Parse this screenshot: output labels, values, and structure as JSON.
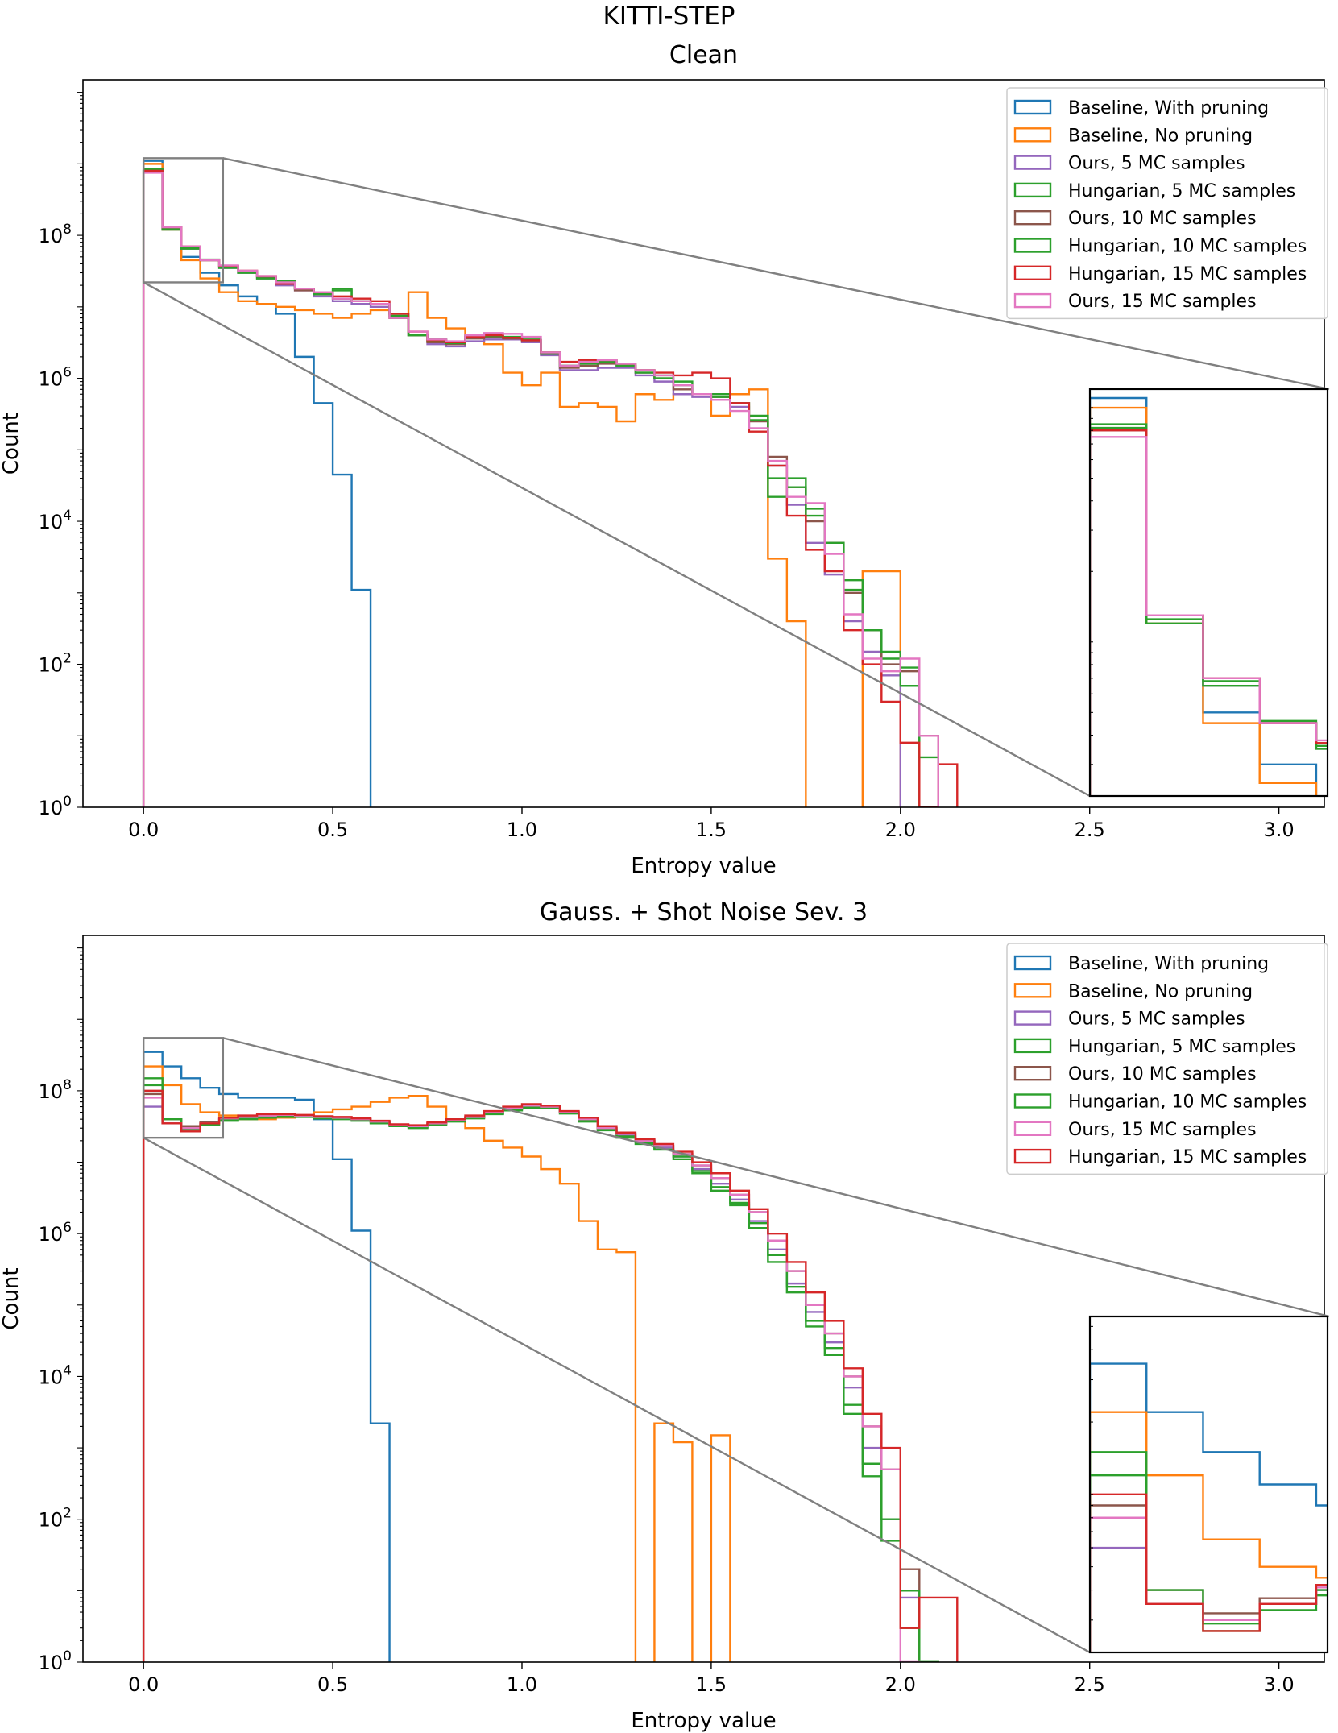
{
  "figure": {
    "title": "KITTI-STEP",
    "colors": {
      "blue": "#1f77b4",
      "orange": "#ff7f0e",
      "purple": "#9467bd",
      "green": "#2ca02c",
      "brown": "#8c564b",
      "red": "#d62728",
      "pink": "#e377c2",
      "gray": "#808080"
    }
  },
  "chart_data": [
    {
      "type": "histogram-step",
      "title": "Clean",
      "xlabel": "Entropy value",
      "ylabel": "Count",
      "yscale": "log",
      "xlim": [
        -0.16,
        3.12
      ],
      "ylim": [
        1,
        15000000000
      ],
      "xticks": [
        "0.0",
        "0.5",
        "1.0",
        "1.5",
        "2.0",
        "2.5",
        "3.0"
      ],
      "xtick_values": [
        0,
        0.5,
        1,
        1.5,
        2,
        2.5,
        3
      ],
      "yticks": [
        {
          "value": 1,
          "base": "10",
          "exp": "0"
        },
        {
          "value": 100,
          "base": "10",
          "exp": "2"
        },
        {
          "value": 10000,
          "base": "10",
          "exp": "4"
        },
        {
          "value": 1000000,
          "base": "10",
          "exp": "6"
        },
        {
          "value": 100000000,
          "base": "10",
          "exp": "8"
        }
      ],
      "legend_position": "upper right",
      "bin_width": 0.05,
      "series": [
        {
          "name": "Baseline, With pruning",
          "color": "blue",
          "values": [
            1100000000.0,
            120000000.0,
            50000000.0,
            30000000.0,
            20000000.0,
            14000000.0,
            11000000.0,
            8000000.0,
            2000000.0,
            450000.0,
            45000.0,
            1100.0
          ]
        },
        {
          "name": "Baseline, No pruning",
          "color": "orange",
          "values": [
            1000000000.0,
            120000000.0,
            45000000.0,
            25000000.0,
            16000000.0,
            12000000.0,
            11000000.0,
            10000000.0,
            9000000.0,
            8000000.0,
            7000000.0,
            8000000.0,
            9000000.0,
            7000000.0,
            16000000.0,
            7000000.0,
            5000000.0,
            4000000.0,
            3000000.0,
            1200000.0,
            800000.0,
            1200000.0,
            400000.0,
            450000.0,
            400000.0,
            250000.0,
            600000.0,
            500000.0,
            600000.0,
            600000.0,
            300000.0,
            600000.0,
            700000.0,
            3000.0,
            400.0,
            0,
            0,
            0,
            2000.0,
            2000.0
          ]
        },
        {
          "name": "Ours, 5 MC samples",
          "color": "purple",
          "values": [
            800000000.0,
            130000000.0,
            65000000.0,
            45000000.0,
            35000000.0,
            30000000.0,
            25000000.0,
            20000000.0,
            17000000.0,
            14000000.0,
            12000000.0,
            11000000.0,
            10000000.0,
            7000000.0,
            4000000.0,
            3000000.0,
            2800000.0,
            3300000.0,
            3500000.0,
            3500000.0,
            3200000.0,
            2100000.0,
            1300000.0,
            1300000.0,
            1400000.0,
            1400000.0,
            1100000.0,
            900000.0,
            600000.0,
            550000.0,
            500000.0,
            400000.0,
            200000.0,
            60000.0,
            17000.0,
            5000.0,
            1800.0,
            400.0,
            150.0,
            70.0,
            0
          ]
        },
        {
          "name": "Hungarian, 5 MC samples",
          "color": "green",
          "values": [
            850000000.0,
            120000000.0,
            65000000.0,
            45000000.0,
            35000000.0,
            30000000.0,
            25000000.0,
            23000000.0,
            18000000.0,
            15000000.0,
            18000000.0,
            12000000.0,
            11000000.0,
            8000000.0,
            4000000.0,
            3500000.0,
            3200000.0,
            4000000.0,
            4000000.0,
            3800000.0,
            3500000.0,
            2300000.0,
            1500000.0,
            1700000.0,
            1800000.0,
            1600000.0,
            1300000.0,
            1100000.0,
            900000.0,
            600000.0,
            600000.0,
            450000.0,
            300000.0,
            22000.0,
            40000.0,
            15000.0,
            5000.0,
            1100.0,
            300.0,
            120.0,
            90.0,
            0
          ]
        },
        {
          "name": "Ours, 10 MC samples",
          "color": "brown",
          "values": [
            800000000.0,
            130000000.0,
            70000000.0,
            45000000.0,
            37000000.0,
            31000000.0,
            26000000.0,
            21000000.0,
            17000000.0,
            15000000.0,
            13000000.0,
            12000000.0,
            11000000.0,
            7000000.0,
            4000000.0,
            3200000.0,
            3000000.0,
            3600000.0,
            3800000.0,
            3600000.0,
            3400000.0,
            2200000.0,
            1400000.0,
            1500000.0,
            1600000.0,
            1500000.0,
            1200000.0,
            1000000.0,
            700000.0,
            600000.0,
            550000.0,
            450000.0,
            250000.0,
            80000.0,
            30000.0,
            10000.0,
            5000.0,
            1000.0,
            300.0,
            100.0,
            80.0,
            10.0
          ]
        },
        {
          "name": "Hungarian, 10 MC samples",
          "color": "green",
          "values": [
            820000000.0,
            125000000.0,
            68000000.0,
            46000000.0,
            36000000.0,
            30000000.0,
            25000000.0,
            22000000.0,
            18000000.0,
            15000000.0,
            17000000.0,
            12000000.0,
            11000000.0,
            7500000.0,
            4000000.0,
            3300000.0,
            3100000.0,
            3800000.0,
            3900000.0,
            3700000.0,
            3400000.0,
            2200000.0,
            1500000.0,
            1600000.0,
            1700000.0,
            1500000.0,
            1200000.0,
            1000000.0,
            800000.0,
            600000.0,
            550000.0,
            450000.0,
            260000.0,
            40000.0,
            30000.0,
            12000.0,
            5000.0,
            1500.0,
            300.0,
            150.0,
            50.0,
            5
          ]
        },
        {
          "name": "Hungarian, 15 MC samples",
          "color": "red",
          "values": [
            800000000.0,
            130000000.0,
            70000000.0,
            45000000.0,
            37000000.0,
            32000000.0,
            27000000.0,
            21000000.0,
            18000000.0,
            16000000.0,
            14000000.0,
            13000000.0,
            12000000.0,
            8000000.0,
            4500000.0,
            3400000.0,
            3200000.0,
            3800000.0,
            4000000.0,
            3700000.0,
            3400000.0,
            2300000.0,
            1700000.0,
            1800000.0,
            1800000.0,
            1600000.0,
            1300000.0,
            1200000.0,
            1100000.0,
            1200000.0,
            1000000.0,
            450000.0,
            180000.0,
            60000.0,
            12000.0,
            4000.0,
            2000.0,
            300.0,
            100.0,
            30.0,
            8,
            1,
            4
          ]
        },
        {
          "name": "Ours, 15 MC samples",
          "color": "pink",
          "values": [
            750000000.0,
            130000000.0,
            70000000.0,
            45000000.0,
            38000000.0,
            32000000.0,
            27000000.0,
            22000000.0,
            18000000.0,
            16000000.0,
            13000000.0,
            12000000.0,
            11000000.0,
            7000000.0,
            4500000.0,
            3500000.0,
            3300000.0,
            4000000.0,
            4300000.0,
            4200000.0,
            3800000.0,
            2300000.0,
            1500000.0,
            1700000.0,
            1800000.0,
            1600000.0,
            1300000.0,
            1100000.0,
            800000.0,
            600000.0,
            500000.0,
            350000.0,
            200000.0,
            70000.0,
            22000.0,
            18000.0,
            3500.0,
            500.0,
            120.0,
            80.0,
            120.0,
            10.0
          ]
        }
      ],
      "inset": {
        "xlim": [
          0,
          0.21
        ],
        "ylim": [
          22000000,
          1200000000
        ],
        "source_box": [
          0,
          0.21,
          22000000,
          1200000000
        ],
        "anchor": "right"
      }
    },
    {
      "type": "histogram-step",
      "title": "Gauss. + Shot Noise Sev. 3",
      "xlabel": "Entropy value",
      "ylabel": "Count",
      "yscale": "log",
      "xlim": [
        -0.16,
        3.12
      ],
      "ylim": [
        1,
        15000000000
      ],
      "xticks": [
        "0.0",
        "0.5",
        "1.0",
        "1.5",
        "2.0",
        "2.5",
        "3.0"
      ],
      "xtick_values": [
        0,
        0.5,
        1,
        1.5,
        2,
        2.5,
        3
      ],
      "yticks": [
        {
          "value": 1,
          "base": "10",
          "exp": "0"
        },
        {
          "value": 100,
          "base": "10",
          "exp": "2"
        },
        {
          "value": 10000,
          "base": "10",
          "exp": "4"
        },
        {
          "value": 1000000,
          "base": "10",
          "exp": "6"
        },
        {
          "value": 100000000,
          "base": "10",
          "exp": "8"
        }
      ],
      "legend_position": "upper right",
      "bin_width": 0.05,
      "series": [
        {
          "name": "Baseline, With pruning",
          "color": "blue",
          "values": [
            350000000.0,
            220000000.0,
            150000000.0,
            110000000.0,
            90000000.0,
            80000000.0,
            80000000.0,
            80000000.0,
            75000000.0,
            40000000.0,
            11000000.0,
            1100000.0,
            2200.0
          ]
        },
        {
          "name": "Baseline, No pruning",
          "color": "orange",
          "values": [
            220000000.0,
            120000000.0,
            65000000.0,
            50000000.0,
            45000000.0,
            40000000.0,
            40000000.0,
            42000000.0,
            45000000.0,
            50000000.0,
            55000000.0,
            60000000.0,
            70000000.0,
            80000000.0,
            85000000.0,
            60000000.0,
            40000000.0,
            30000000.0,
            20000000.0,
            16000000.0,
            12000000.0,
            8000000.0,
            5000000.0,
            1500000.0,
            600000.0,
            550000.0,
            0,
            2200.0,
            1200.0,
            0,
            1500.0
          ]
        },
        {
          "name": "Ours, 5 MC samples",
          "color": "purple",
          "values": [
            60000000.0,
            35000000.0,
            30000000.0,
            35000000.0,
            40000000.0,
            42000000.0,
            44000000.0,
            45000000.0,
            45000000.0,
            43000000.0,
            42000000.0,
            40000000.0,
            37000000.0,
            33000000.0,
            32000000.0,
            35000000.0,
            38000000.0,
            42000000.0,
            48000000.0,
            55000000.0,
            60000000.0,
            60000000.0,
            50000000.0,
            40000000.0,
            30000000.0,
            24000000.0,
            20000000.0,
            16000000.0,
            12000000.0,
            8000000.0,
            5000000.0,
            3000000.0,
            1500000.0,
            600000.0,
            200000.0,
            80000.0,
            30000.0,
            7000.0,
            1000.0,
            100.0,
            8
          ]
        },
        {
          "name": "Hungarian, 5 MC samples",
          "color": "green",
          "values": [
            150000000.0,
            35000000.0,
            27000000.0,
            33000000.0,
            38000000.0,
            40000000.0,
            42000000.0,
            43000000.0,
            43000000.0,
            41000000.0,
            40000000.0,
            38000000.0,
            35000000.0,
            32000000.0,
            30000000.0,
            33000000.0,
            37000000.0,
            41000000.0,
            47000000.0,
            53000000.0,
            58000000.0,
            58000000.0,
            48000000.0,
            37000000.0,
            28000000.0,
            22000000.0,
            18000000.0,
            15000000.0,
            11000000.0,
            7000000.0,
            4000000.0,
            2500000.0,
            1200000.0,
            400000.0,
            150000.0,
            50000.0,
            20000.0,
            3000.0,
            400.0,
            50.0,
            3,
            1
          ]
        },
        {
          "name": "Ours, 10 MC samples",
          "color": "brown",
          "values": [
            90000000.0,
            40000000.0,
            32000000.0,
            37000000.0,
            42000000.0,
            44000000.0,
            46000000.0,
            46000000.0,
            45000000.0,
            43000000.0,
            42000000.0,
            40000000.0,
            37000000.0,
            33000000.0,
            32000000.0,
            35000000.0,
            39000000.0,
            43000000.0,
            50000000.0,
            58000000.0,
            62000000.0,
            60000000.0,
            50000000.0,
            40000000.0,
            30000000.0,
            25000000.0,
            20000000.0,
            17000000.0,
            13000000.0,
            9000000.0,
            6000000.0,
            3500000.0,
            2000000.0,
            800000.0,
            300000.0,
            100000.0,
            40000.0,
            10000.0,
            2000.0,
            500.0,
            20.0
          ]
        },
        {
          "name": "Hungarian, 10 MC samples",
          "color": "green",
          "values": [
            120000000.0,
            40000000.0,
            29000000.0,
            35000000.0,
            40000000.0,
            42000000.0,
            44000000.0,
            44000000.0,
            44000000.0,
            42000000.0,
            41000000.0,
            39000000.0,
            36000000.0,
            33000000.0,
            31000000.0,
            34000000.0,
            38000000.0,
            42000000.0,
            48000000.0,
            55000000.0,
            60000000.0,
            60000000.0,
            50000000.0,
            38000000.0,
            29000000.0,
            23000000.0,
            19000000.0,
            15000000.0,
            12000000.0,
            7500000.0,
            4500000.0,
            2700000.0,
            1400000.0,
            500000.0,
            180000.0,
            60000.0,
            25000.0,
            4000.0,
            600.0,
            100.0,
            10.0,
            1
          ]
        },
        {
          "name": "Ours, 15 MC samples",
          "color": "pink",
          "values": [
            80000000.0,
            35000000.0,
            30000000.0,
            35000000.0,
            41000000.0,
            43000000.0,
            45000000.0,
            46000000.0,
            45000000.0,
            43000000.0,
            42000000.0,
            40000000.0,
            37000000.0,
            33000000.0,
            32000000.0,
            35000000.0,
            39000000.0,
            43000000.0,
            50000000.0,
            57000000.0,
            62000000.0,
            60000000.0,
            50000000.0,
            40000000.0,
            30000000.0,
            25000000.0,
            20000000.0,
            17000000.0,
            13000000.0,
            9000000.0,
            6000000.0,
            3500000.0,
            2000000.0,
            800000.0,
            300000.0,
            100000.0,
            40000.0,
            10000.0,
            2000.0,
            500.0,
            1
          ]
        },
        {
          "name": "Hungarian, 15 MC samples",
          "color": "red",
          "values": [
            100000000.0,
            35000000.0,
            27000000.0,
            35000000.0,
            42000000.0,
            45000000.0,
            47000000.0,
            47000000.0,
            46000000.0,
            44000000.0,
            43000000.0,
            41000000.0,
            38000000.0,
            34000000.0,
            33000000.0,
            36000000.0,
            40000000.0,
            45000000.0,
            52000000.0,
            60000000.0,
            65000000.0,
            62000000.0,
            52000000.0,
            42000000.0,
            32000000.0,
            26000000.0,
            21000000.0,
            18000000.0,
            14000000.0,
            10000000.0,
            7000000.0,
            4000000.0,
            2200000.0,
            1000000.0,
            400000.0,
            150000.0,
            60000.0,
            13000.0,
            3000.0,
            1000.0,
            3,
            8,
            8
          ]
        }
      ],
      "inset": {
        "xlim": [
          0,
          0.21
        ],
        "ylim": [
          22000000,
          550000000
        ],
        "source_box": [
          0,
          0.21,
          22000000,
          550000000
        ],
        "anchor": "right"
      }
    }
  ]
}
